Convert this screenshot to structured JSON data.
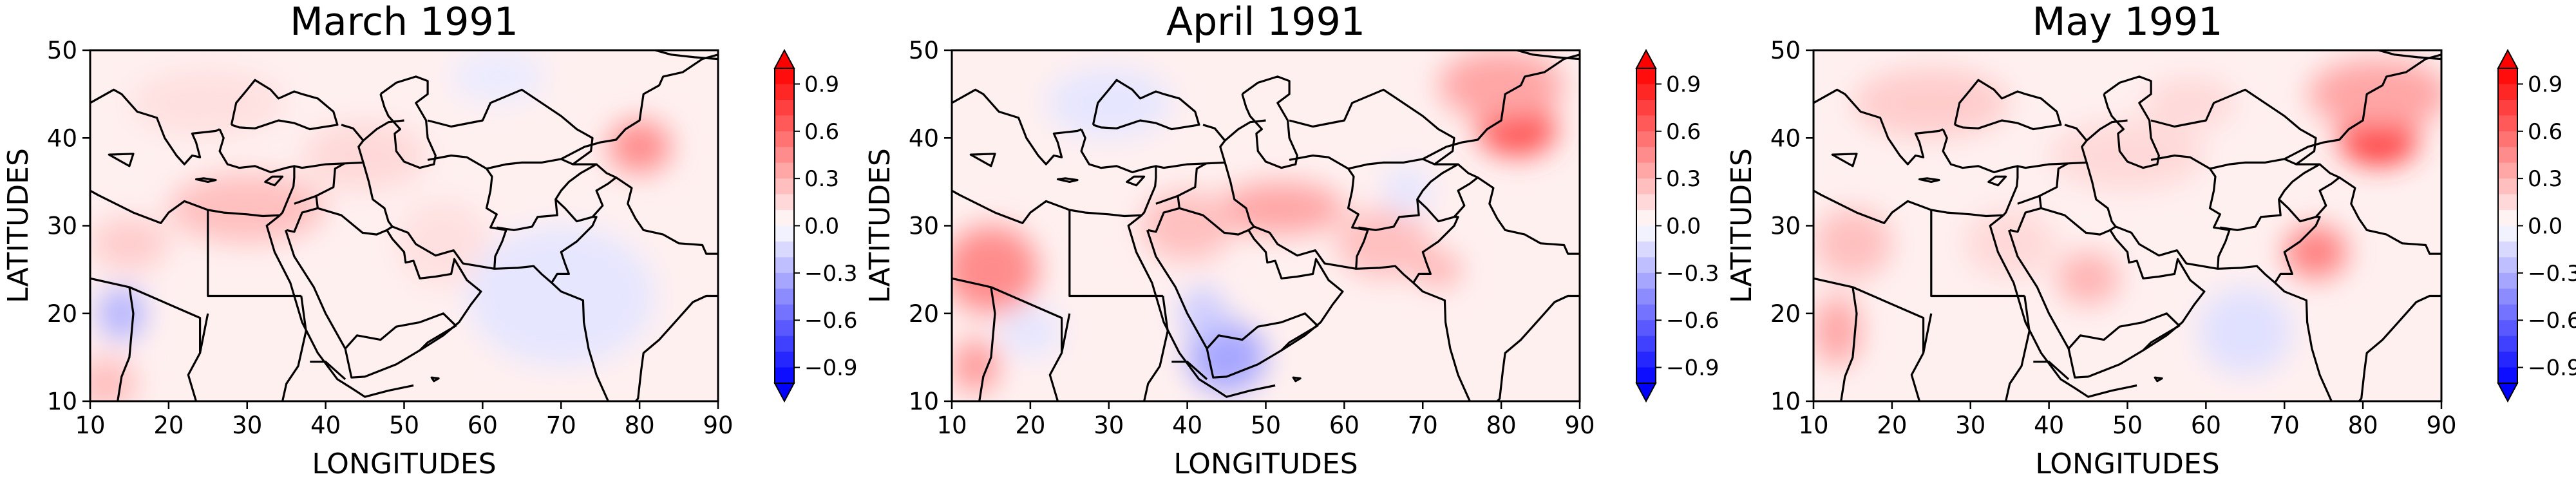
{
  "figure": {
    "type": "contour-map-panels"
  },
  "colors": {
    "positive_max": "#ff0000",
    "neutral": "#ffffff",
    "negative_max": "#0000ff",
    "coastline": "#000000"
  },
  "chart_data": [
    {
      "type": "heatmap",
      "title": "March 1991",
      "xlabel": "LONGITUDES",
      "ylabel": "LATITUDES",
      "xlim": [
        10,
        90
      ],
      "ylim": [
        10,
        50
      ],
      "xticks": [
        "10",
        "20",
        "30",
        "40",
        "50",
        "60",
        "70",
        "80",
        "90"
      ],
      "yticks": [
        "10",
        "20",
        "30",
        "40",
        "50"
      ],
      "colorbar": {
        "range": [
          -1.0,
          1.0
        ],
        "ticks": [
          "0.9",
          "0.6",
          "0.3",
          "0.0",
          "−0.3",
          "−0.6",
          "−0.9"
        ],
        "extend": "both",
        "colormap": "bwr"
      },
      "features": [
        {
          "lon": 80,
          "lat": 39,
          "value": 0.45,
          "slon": 4,
          "slat": 3
        },
        {
          "lon": 30,
          "lat": 32,
          "value": 0.25,
          "slon": 10,
          "slat": 4
        },
        {
          "lon": 15,
          "lat": 28,
          "value": 0.2,
          "slon": 5,
          "slat": 3
        },
        {
          "lon": 45,
          "lat": 38,
          "value": 0.15,
          "slon": 8,
          "slat": 4
        },
        {
          "lon": 25,
          "lat": 44,
          "value": 0.12,
          "slon": 10,
          "slat": 4
        },
        {
          "lon": 55,
          "lat": 28,
          "value": 0.12,
          "slon": 6,
          "slat": 5
        },
        {
          "lon": 12,
          "lat": 12,
          "value": 0.25,
          "slon": 4,
          "slat": 3
        },
        {
          "lon": 14,
          "lat": 20,
          "value": -0.3,
          "slon": 3,
          "slat": 3
        },
        {
          "lon": 70,
          "lat": 22,
          "value": -0.1,
          "slon": 12,
          "slat": 8
        },
        {
          "lon": 62,
          "lat": 47,
          "value": -0.08,
          "slon": 6,
          "slat": 3
        }
      ]
    },
    {
      "type": "heatmap",
      "title": "April 1991",
      "xlabel": "LONGITUDES",
      "ylabel": "LATITUDES",
      "xlim": [
        10,
        90
      ],
      "ylim": [
        10,
        50
      ],
      "xticks": [
        "10",
        "20",
        "30",
        "40",
        "50",
        "60",
        "70",
        "80",
        "90"
      ],
      "yticks": [
        "10",
        "20",
        "30",
        "40",
        "50"
      ],
      "colorbar": {
        "range": [
          -1.0,
          1.0
        ],
        "ticks": [
          "0.9",
          "0.6",
          "0.3",
          "0.0",
          "−0.3",
          "−0.6",
          "−0.9"
        ],
        "extend": "both",
        "colormap": "bwr"
      },
      "features": [
        {
          "lon": 82,
          "lat": 41,
          "value": 0.7,
          "slon": 5,
          "slat": 3
        },
        {
          "lon": 80,
          "lat": 46,
          "value": 0.35,
          "slon": 8,
          "slat": 4
        },
        {
          "lon": 15,
          "lat": 25,
          "value": 0.45,
          "slon": 6,
          "slat": 5
        },
        {
          "lon": 13,
          "lat": 14,
          "value": 0.4,
          "slon": 3,
          "slat": 3
        },
        {
          "lon": 52,
          "lat": 32,
          "value": 0.35,
          "slon": 8,
          "slat": 3
        },
        {
          "lon": 40,
          "lat": 30,
          "value": 0.25,
          "slon": 6,
          "slat": 4
        },
        {
          "lon": 65,
          "lat": 28,
          "value": 0.25,
          "slon": 6,
          "slat": 4
        },
        {
          "lon": 72,
          "lat": 25,
          "value": 0.3,
          "slon": 3,
          "slat": 2
        },
        {
          "lon": 45,
          "lat": 15,
          "value": -0.35,
          "slon": 5,
          "slat": 4
        },
        {
          "lon": 42,
          "lat": 20,
          "value": -0.2,
          "slon": 3,
          "slat": 3
        },
        {
          "lon": 30,
          "lat": 44,
          "value": -0.1,
          "slon": 8,
          "slat": 4
        },
        {
          "lon": 68,
          "lat": 34,
          "value": -0.1,
          "slon": 3,
          "slat": 3
        },
        {
          "lon": 20,
          "lat": 18,
          "value": -0.1,
          "slon": 4,
          "slat": 3
        }
      ]
    },
    {
      "type": "heatmap",
      "title": "May 1991",
      "xlabel": "LONGITUDES",
      "ylabel": "LATITUDES",
      "xlim": [
        10,
        90
      ],
      "ylim": [
        10,
        50
      ],
      "xticks": [
        "10",
        "20",
        "30",
        "40",
        "50",
        "60",
        "70",
        "80",
        "90"
      ],
      "yticks": [
        "10",
        "20",
        "30",
        "40",
        "50"
      ],
      "colorbar": {
        "range": [
          -1.0,
          1.0
        ],
        "ticks": [
          "0.9",
          "0.6",
          "0.3",
          "0.0",
          "−0.3",
          "−0.6",
          "−0.9"
        ],
        "extend": "both",
        "colormap": "bwr"
      },
      "features": [
        {
          "lon": 82,
          "lat": 40,
          "value": 0.8,
          "slon": 5,
          "slat": 3
        },
        {
          "lon": 82,
          "lat": 45,
          "value": 0.35,
          "slon": 9,
          "slat": 4
        },
        {
          "lon": 74,
          "lat": 27,
          "value": 0.5,
          "slon": 4,
          "slat": 3
        },
        {
          "lon": 45,
          "lat": 24,
          "value": 0.3,
          "slon": 4,
          "slat": 3
        },
        {
          "lon": 13,
          "lat": 18,
          "value": 0.35,
          "slon": 3,
          "slat": 4
        },
        {
          "lon": 15,
          "lat": 28,
          "value": 0.25,
          "slon": 5,
          "slat": 4
        },
        {
          "lon": 25,
          "lat": 44,
          "value": 0.2,
          "slon": 10,
          "slat": 4
        },
        {
          "lon": 50,
          "lat": 38,
          "value": 0.15,
          "slon": 10,
          "slat": 4
        },
        {
          "lon": 65,
          "lat": 18,
          "value": -0.12,
          "slon": 6,
          "slat": 5
        },
        {
          "lon": 35,
          "lat": 28,
          "value": 0.15,
          "slon": 6,
          "slat": 4
        },
        {
          "lon": 58,
          "lat": 44,
          "value": 0.15,
          "slon": 6,
          "slat": 3
        }
      ]
    }
  ]
}
